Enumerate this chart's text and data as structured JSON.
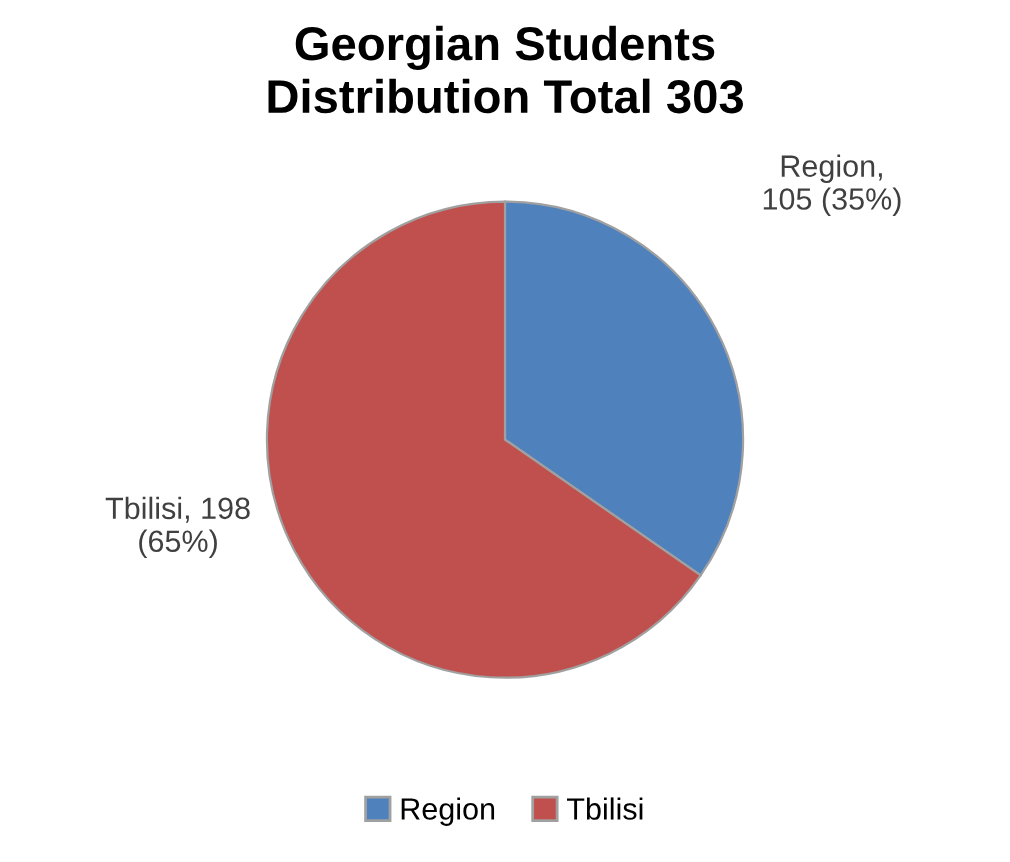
{
  "chart_data": {
    "type": "pie",
    "title": "Georgian Students\nDistribution Total 303",
    "categories": [
      "Region",
      "Tbilisi"
    ],
    "values": [
      105,
      198
    ],
    "colors": [
      "#4f81bd",
      "#c0504d"
    ],
    "value_labels": [
      "Region,\n105 (35%)",
      "Tbilisi, 198\n(65%)"
    ],
    "legend": "bottom"
  }
}
